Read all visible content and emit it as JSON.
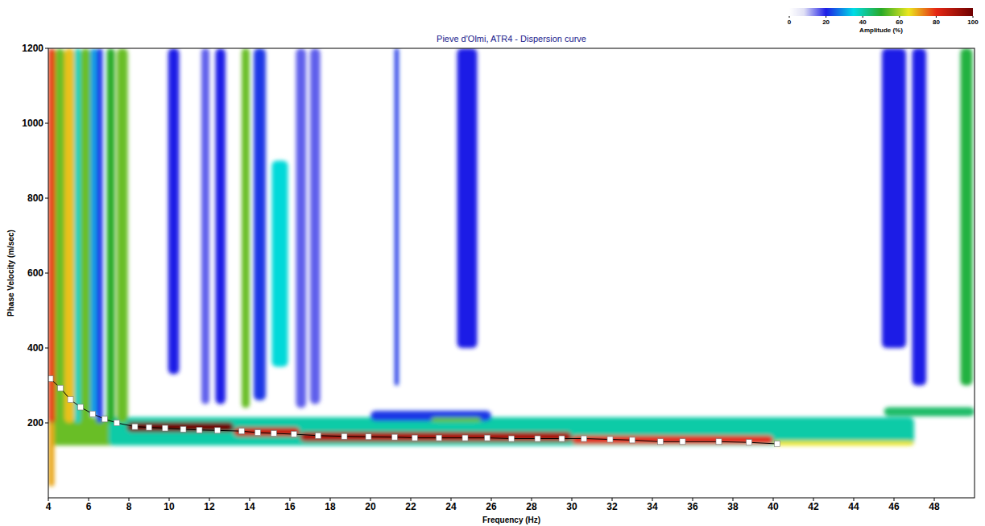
{
  "chart_data": {
    "type": "heatmap",
    "title": "Pieve d'Olmi, ATR4 - Dispersion curve",
    "x_label": "Frequency (Hz)",
    "y_label": "Phase Velocity (m/sec)",
    "xlim": [
      4,
      50
    ],
    "xticks": [
      4,
      6,
      8,
      10,
      12,
      14,
      16,
      18,
      20,
      22,
      24,
      26,
      28,
      30,
      32,
      34,
      36,
      38,
      40,
      42,
      44,
      46,
      48
    ],
    "ylim": [
      0,
      1200
    ],
    "yticks": [
      200,
      400,
      600,
      800,
      1000,
      1200
    ],
    "grid": false,
    "colorbar": {
      "label": "Amplitude (%)",
      "range": [
        0,
        100
      ],
      "ticks": [
        0,
        20,
        40,
        60,
        80,
        100
      ]
    },
    "cells": [
      [
        4.0,
        8.0,
        140,
        215,
        55
      ],
      [
        7.0,
        47.0,
        140,
        215,
        40
      ],
      [
        20.0,
        26.0,
        205,
        232,
        22
      ],
      [
        23.0,
        25.5,
        203,
        215,
        55
      ],
      [
        45.5,
        50.0,
        218,
        242,
        45
      ],
      [
        4.0,
        4.35,
        200,
        1200,
        78
      ],
      [
        4.35,
        4.8,
        200,
        1200,
        55
      ],
      [
        4.8,
        5.3,
        200,
        1200,
        68
      ],
      [
        5.3,
        5.6,
        200,
        1200,
        38
      ],
      [
        5.6,
        6.1,
        200,
        1200,
        55
      ],
      [
        6.1,
        6.4,
        220,
        1200,
        30
      ],
      [
        6.4,
        6.7,
        200,
        1200,
        22
      ],
      [
        6.9,
        7.3,
        200,
        1200,
        50
      ],
      [
        7.4,
        7.95,
        200,
        1200,
        55
      ],
      [
        9.95,
        10.5,
        330,
        1200,
        20
      ],
      [
        11.6,
        12.0,
        250,
        1200,
        16
      ],
      [
        12.3,
        12.8,
        250,
        1200,
        20
      ],
      [
        13.6,
        14.0,
        240,
        1200,
        55
      ],
      [
        14.2,
        14.8,
        260,
        1200,
        22
      ],
      [
        15.1,
        15.9,
        350,
        900,
        36
      ],
      [
        16.3,
        16.8,
        240,
        1200,
        16
      ],
      [
        17.0,
        17.5,
        250,
        1200,
        16
      ],
      [
        21.2,
        21.4,
        300,
        1200,
        22
      ],
      [
        24.3,
        25.3,
        400,
        1200,
        20
      ],
      [
        45.4,
        46.6,
        400,
        1200,
        20
      ],
      [
        46.9,
        47.6,
        300,
        1200,
        20
      ],
      [
        49.3,
        49.9,
        300,
        1200,
        48
      ],
      [
        7.9,
        13.2,
        176,
        202,
        100
      ],
      [
        13.2,
        16.5,
        164,
        188,
        85
      ],
      [
        16.5,
        30.0,
        150,
        176,
        90
      ],
      [
        30.0,
        40.0,
        144,
        166,
        80
      ],
      [
        40.0,
        47.0,
        140,
        152,
        65
      ],
      [
        4.0,
        4.3,
        30,
        200,
        70
      ]
    ],
    "x": [
      4.1,
      4.6,
      5.1,
      5.6,
      6.2,
      6.8,
      7.4,
      8.3,
      9.0,
      9.8,
      10.7,
      11.5,
      12.4,
      13.6,
      14.4,
      15.2,
      16.2,
      17.4,
      18.7,
      19.9,
      21.2,
      22.2,
      23.4,
      24.7,
      25.8,
      27.0,
      28.3,
      29.5,
      30.6,
      31.9,
      33.0,
      34.4,
      35.5,
      37.3,
      38.8,
      40.2
    ],
    "series": [
      {
        "type": "line",
        "marker": "square",
        "color": "#ffffff",
        "values": [
          318,
          293,
          262,
          242,
          224,
          210,
          200,
          190,
          188,
          186,
          183,
          181,
          180,
          178,
          174,
          172,
          170,
          166,
          164,
          163,
          162,
          160,
          160,
          160,
          160,
          158,
          158,
          158,
          158,
          156,
          154,
          150,
          150,
          150,
          148,
          144
        ]
      }
    ]
  }
}
